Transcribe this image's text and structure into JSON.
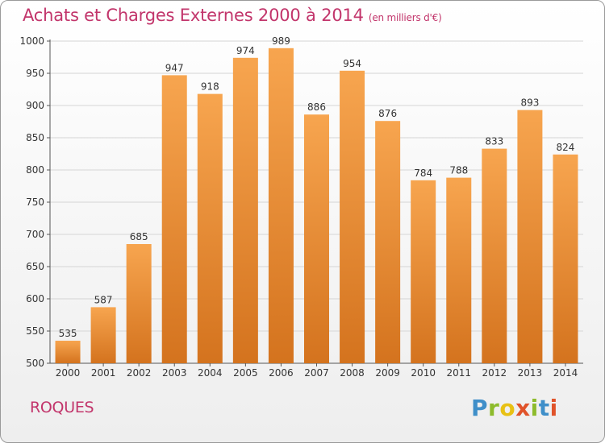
{
  "header": {
    "title": "Achats et Charges Externes 2000 à 2014",
    "subtitle": "(en milliers d'€)"
  },
  "footer": {
    "commune": "ROQUES",
    "logo_text": "Proxiti"
  },
  "colors": {
    "accent": "#c2356b",
    "bar_top": "#f7a54f",
    "bar_bottom": "#d4731e",
    "grid": "#d5d5d5"
  },
  "chart_data": {
    "type": "bar",
    "title": "Achats et Charges Externes 2000 à 2014",
    "subtitle": "(en milliers d'€)",
    "xlabel": "",
    "ylabel": "",
    "categories": [
      "2000",
      "2001",
      "2002",
      "2003",
      "2004",
      "2005",
      "2006",
      "2007",
      "2008",
      "2009",
      "2010",
      "2011",
      "2012",
      "2013",
      "2014"
    ],
    "values": [
      535,
      587,
      685,
      947,
      918,
      974,
      989,
      886,
      954,
      876,
      784,
      788,
      833,
      893,
      824
    ],
    "ylim": [
      500,
      1000
    ],
    "yticks": [
      500,
      550,
      600,
      650,
      700,
      750,
      800,
      850,
      900,
      950,
      1000
    ],
    "grid": true,
    "data_labels": true
  }
}
